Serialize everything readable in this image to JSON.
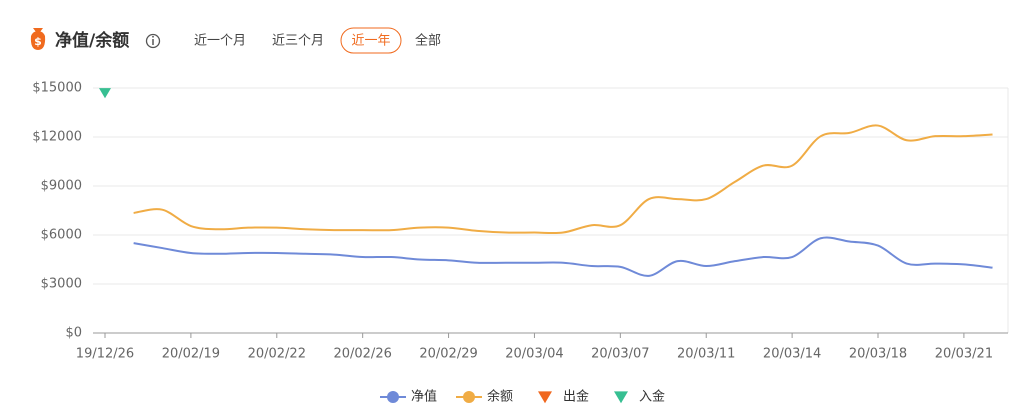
{
  "header": {
    "title": "净值/余额",
    "tabs": [
      "近一个月",
      "近三个月",
      "近一年",
      "全部"
    ],
    "active_tab": 2
  },
  "chart_data": {
    "type": "line",
    "categories": [
      "19/12/26",
      null,
      null,
      "20/02/19",
      null,
      null,
      "20/02/22",
      null,
      null,
      "20/02/26",
      null,
      null,
      "20/02/29",
      null,
      null,
      "20/03/04",
      null,
      null,
      "20/03/07",
      null,
      null,
      "20/03/11",
      null,
      null,
      "20/03/14",
      null,
      null,
      "20/03/18",
      null,
      null,
      "20/03/21",
      null
    ],
    "series": [
      {
        "name": "净值",
        "color": "#6f8ad8",
        "marker": "circle",
        "values": [
          null,
          5500,
          5200,
          4900,
          4850,
          4900,
          4900,
          4850,
          4800,
          4650,
          4650,
          4500,
          4450,
          4300,
          4300,
          4300,
          4300,
          4100,
          4050,
          3500,
          4400,
          4100,
          4400,
          4650,
          4650,
          5800,
          5600,
          5350,
          4250,
          4250,
          4200,
          4000
        ]
      },
      {
        "name": "余额",
        "color": "#f0ac45",
        "marker": "circle",
        "values": [
          null,
          7350,
          7550,
          6550,
          6350,
          6450,
          6450,
          6350,
          6300,
          6300,
          6300,
          6450,
          6450,
          6250,
          6150,
          6150,
          6150,
          6600,
          6600,
          8200,
          8200,
          8200,
          9250,
          10250,
          10250,
          12050,
          12250,
          12700,
          11800,
          12050,
          12050,
          12150
        ]
      },
      {
        "name": "出金",
        "color": "#f0671e",
        "marker": "triangle",
        "values": [
          null,
          null,
          null,
          null,
          null,
          null,
          null,
          null,
          null,
          null,
          null,
          null,
          null,
          null,
          null,
          null,
          null,
          null,
          null,
          null,
          null,
          null,
          null,
          null,
          null,
          null,
          null,
          null,
          null,
          null,
          null,
          null
        ]
      },
      {
        "name": "入金",
        "color": "#37bf92",
        "marker": "triangle",
        "values": [
          14700,
          null,
          null,
          null,
          null,
          null,
          null,
          null,
          null,
          null,
          null,
          null,
          null,
          null,
          null,
          null,
          null,
          null,
          null,
          null,
          null,
          null,
          null,
          null,
          null,
          null,
          null,
          null,
          null,
          null,
          null,
          null
        ]
      }
    ],
    "ylim": [
      0,
      15000
    ],
    "yticks": [
      {
        "value": 0,
        "label": "$0"
      },
      {
        "value": 3000,
        "label": "$3000"
      },
      {
        "value": 6000,
        "label": "$6000"
      },
      {
        "value": 9000,
        "label": "$9000"
      },
      {
        "value": 12000,
        "label": "$12000"
      },
      {
        "value": 15000,
        "label": "$15000"
      }
    ],
    "grid": true,
    "smooth": true,
    "legend": "bottom"
  }
}
